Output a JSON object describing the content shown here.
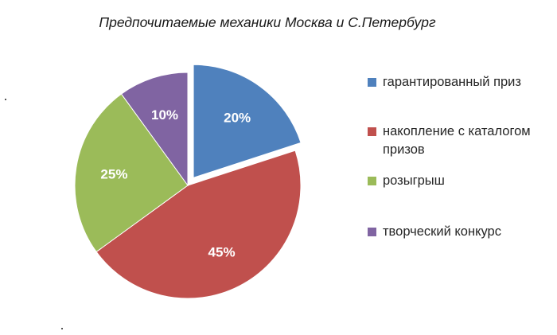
{
  "chart_data": {
    "type": "pie",
    "title": "Предпочитаемые механики Москва и С.Петербург",
    "categories": [
      "гарантированный приз",
      "накопление с каталогом призов",
      "розыгрыш",
      "творческий конкурс"
    ],
    "values": [
      20,
      45,
      25,
      10
    ],
    "data_labels": [
      "20%",
      "45%",
      "25%",
      "10%"
    ],
    "colors": [
      "#4f81bd",
      "#c0504d",
      "#9bbb59",
      "#8064a2"
    ],
    "exploded": [
      true,
      false,
      false,
      false
    ],
    "legend_position": "right"
  }
}
